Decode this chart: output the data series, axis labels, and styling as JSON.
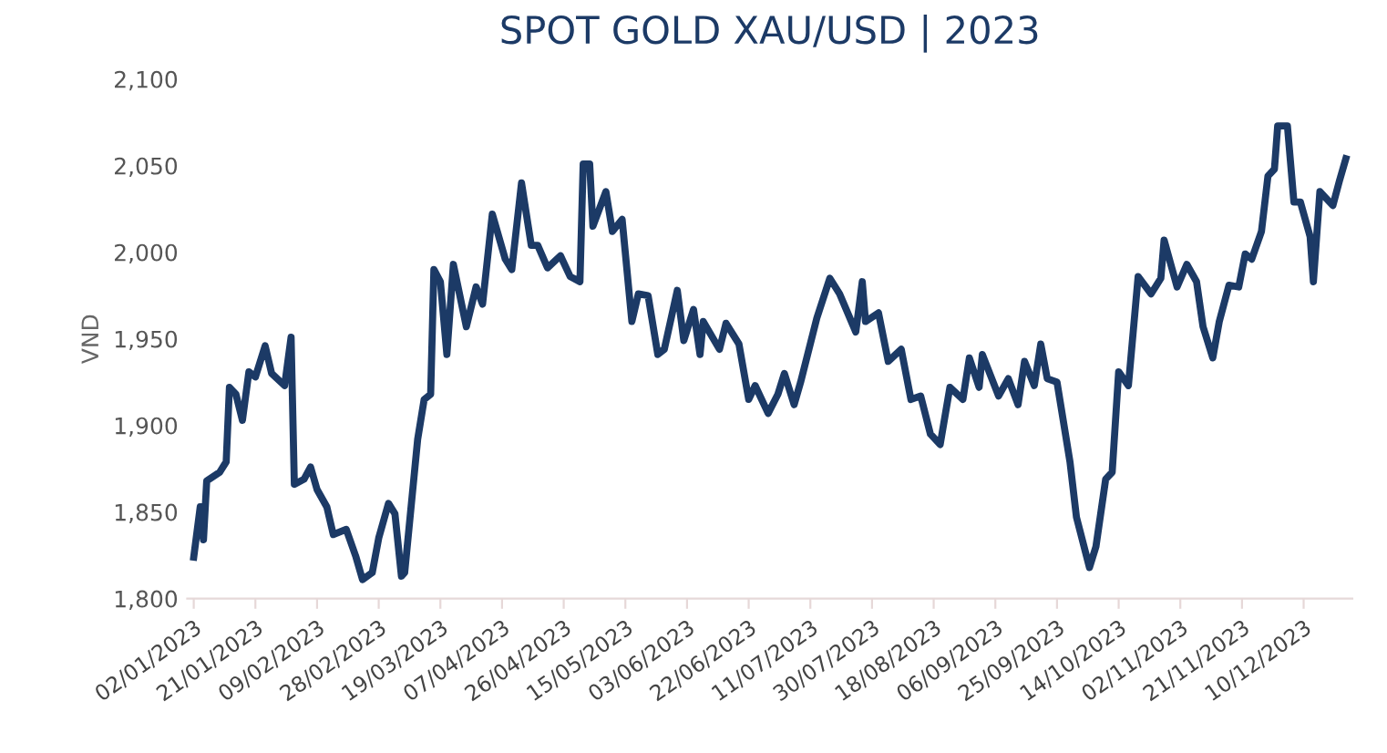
{
  "chart_data": {
    "type": "line",
    "title": "SPOT GOLD XAU/USD | 2023",
    "ylabel": "VND",
    "x": [
      "2023-01-02",
      "2023-01-04",
      "2023-01-05",
      "2023-01-06",
      "2023-01-10",
      "2023-01-12",
      "2023-01-13",
      "2023-01-15",
      "2023-01-17",
      "2023-01-19",
      "2023-01-21",
      "2023-01-24",
      "2023-01-26",
      "2023-01-30",
      "2023-02-01",
      "2023-02-02",
      "2023-02-05",
      "2023-02-07",
      "2023-02-09",
      "2023-02-12",
      "2023-02-14",
      "2023-02-18",
      "2023-02-21",
      "2023-02-23",
      "2023-02-26",
      "2023-02-28",
      "2023-03-03",
      "2023-03-05",
      "2023-03-07",
      "2023-03-08",
      "2023-03-12",
      "2023-03-14",
      "2023-03-16",
      "2023-03-17",
      "2023-03-19",
      "2023-03-21",
      "2023-03-23",
      "2023-03-27",
      "2023-03-30",
      "2023-04-01",
      "2023-04-04",
      "2023-04-08",
      "2023-04-10",
      "2023-04-13",
      "2023-04-16",
      "2023-04-18",
      "2023-04-21",
      "2023-04-25",
      "2023-04-28",
      "2023-05-01",
      "2023-05-02",
      "2023-05-04",
      "2023-05-05",
      "2023-05-09",
      "2023-05-11",
      "2023-05-14",
      "2023-05-17",
      "2023-05-19",
      "2023-05-22",
      "2023-05-25",
      "2023-05-27",
      "2023-05-31",
      "2023-06-02",
      "2023-06-05",
      "2023-06-07",
      "2023-06-08",
      "2023-06-13",
      "2023-06-15",
      "2023-06-19",
      "2023-06-22",
      "2023-06-24",
      "2023-06-28",
      "2023-07-01",
      "2023-07-03",
      "2023-07-06",
      "2023-07-08",
      "2023-07-13",
      "2023-07-17",
      "2023-07-20",
      "2023-07-25",
      "2023-07-27",
      "2023-07-28",
      "2023-08-01",
      "2023-08-04",
      "2023-08-08",
      "2023-08-11",
      "2023-08-14",
      "2023-08-17",
      "2023-08-20",
      "2023-08-23",
      "2023-08-27",
      "2023-08-29",
      "2023-09-01",
      "2023-09-02",
      "2023-09-07",
      "2023-09-10",
      "2023-09-13",
      "2023-09-15",
      "2023-09-18",
      "2023-09-20",
      "2023-09-22",
      "2023-09-25",
      "2023-09-29",
      "2023-10-01",
      "2023-10-05",
      "2023-10-07",
      "2023-10-10",
      "2023-10-12",
      "2023-10-14",
      "2023-10-17",
      "2023-10-20",
      "2023-10-24",
      "2023-10-27",
      "2023-10-28",
      "2023-11-01",
      "2023-11-04",
      "2023-11-07",
      "2023-11-09",
      "2023-11-12",
      "2023-11-14",
      "2023-11-17",
      "2023-11-20",
      "2023-11-22",
      "2023-11-24",
      "2023-11-27",
      "2023-11-29",
      "2023-12-01",
      "2023-12-02",
      "2023-12-05",
      "2023-12-07",
      "2023-12-09",
      "2023-12-12",
      "2023-12-13",
      "2023-12-15",
      "2023-12-19",
      "2023-12-21",
      "2023-12-23"
    ],
    "series": [
      {
        "color": "#1c3a66",
        "values": [
          1824,
          1853,
          1834,
          1868,
          1873,
          1879,
          1922,
          1918,
          1903,
          1931,
          1928,
          1946,
          1930,
          1923,
          1951,
          1866,
          1869,
          1876,
          1863,
          1853,
          1837,
          1840,
          1824,
          1811,
          1815,
          1835,
          1855,
          1849,
          1813,
          1815,
          1892,
          1915,
          1918,
          1990,
          1983,
          1941,
          1993,
          1957,
          1980,
          1970,
          2022,
          1996,
          1990,
          2040,
          2004,
          2004,
          1991,
          1998,
          1986,
          1983,
          2051,
          2051,
          2015,
          2035,
          2012,
          2019,
          1960,
          1976,
          1975,
          1941,
          1944,
          1978,
          1949,
          1967,
          1941,
          1960,
          1944,
          1959,
          1947,
          1915,
          1923,
          1907,
          1918,
          1930,
          1912,
          1925,
          1962,
          1985,
          1976,
          1954,
          1983,
          1960,
          1965,
          1937,
          1944,
          1915,
          1917,
          1895,
          1889,
          1922,
          1915,
          1939,
          1922,
          1941,
          1917,
          1927,
          1912,
          1937,
          1923,
          1947,
          1927,
          1925,
          1879,
          1847,
          1818,
          1830,
          1869,
          1873,
          1931,
          1923,
          1986,
          1976,
          1985,
          2007,
          1980,
          1993,
          1983,
          1957,
          1939,
          1960,
          1981,
          1980,
          1999,
          1996,
          2012,
          2044,
          2048,
          2073,
          2073,
          2029,
          2029,
          2009,
          1983,
          2035,
          2027,
          2041,
          2054
        ]
      }
    ],
    "ylim": [
      1800,
      2100
    ],
    "yticks": [
      {
        "value": 1800,
        "label": "1,800"
      },
      {
        "value": 1850,
        "label": "1,850"
      },
      {
        "value": 1900,
        "label": "1,900"
      },
      {
        "value": 1950,
        "label": "1,950"
      },
      {
        "value": 2000,
        "label": "2,000"
      },
      {
        "value": 2050,
        "label": "2,050"
      },
      {
        "value": 2100,
        "label": "2,100"
      }
    ],
    "xlim": [
      "2022-12-31",
      "2023-12-25"
    ],
    "xticks": [
      {
        "value": "2023-01-02",
        "label": "02/01/2023"
      },
      {
        "value": "2023-01-21",
        "label": "21/01/2023"
      },
      {
        "value": "2023-02-09",
        "label": "09/02/2023"
      },
      {
        "value": "2023-02-28",
        "label": "28/02/2023"
      },
      {
        "value": "2023-03-19",
        "label": "19/03/2023"
      },
      {
        "value": "2023-04-07",
        "label": "07/04/2023"
      },
      {
        "value": "2023-04-26",
        "label": "26/04/2023"
      },
      {
        "value": "2023-05-15",
        "label": "15/05/2023"
      },
      {
        "value": "2023-06-03",
        "label": "03/06/2023"
      },
      {
        "value": "2023-06-22",
        "label": "22/06/2023"
      },
      {
        "value": "2023-07-11",
        "label": "11/07/2023"
      },
      {
        "value": "2023-07-30",
        "label": "30/07/2023"
      },
      {
        "value": "2023-08-18",
        "label": "18/08/2023"
      },
      {
        "value": "2023-09-06",
        "label": "06/09/2023"
      },
      {
        "value": "2023-09-25",
        "label": "25/09/2023"
      },
      {
        "value": "2023-10-14",
        "label": "14/10/2023"
      },
      {
        "value": "2023-11-02",
        "label": "02/11/2023"
      },
      {
        "value": "2023-11-21",
        "label": "21/11/2023"
      },
      {
        "value": "2023-12-10",
        "label": "10/12/2023"
      }
    ],
    "grid": false,
    "legend": false,
    "marker": "none",
    "line_style": "solid"
  }
}
